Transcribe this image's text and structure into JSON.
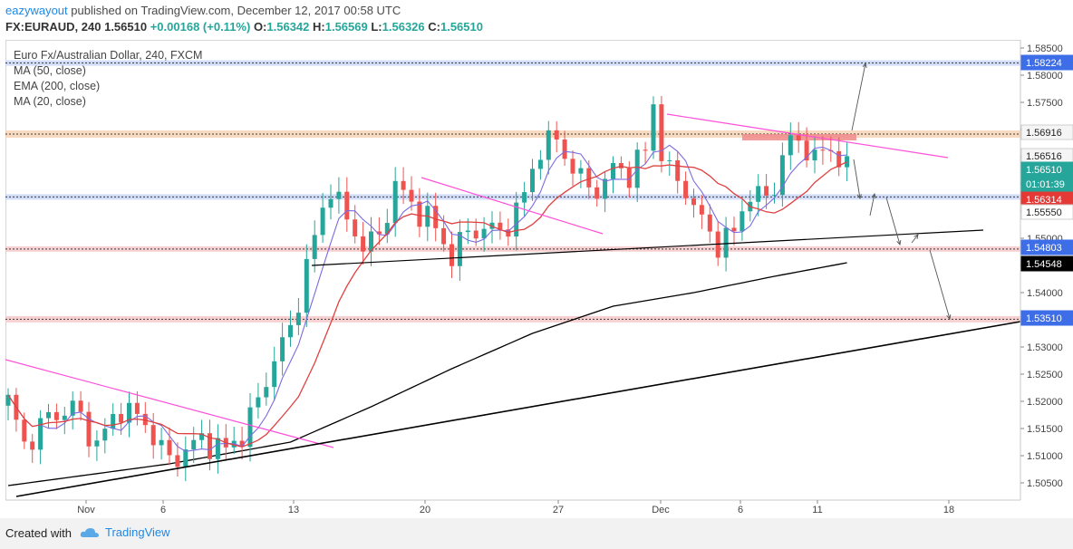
{
  "header": {
    "author": "eazywayout",
    "published_text": "published on TradingView.com, December 12, 2017 00:58 UTC"
  },
  "ohlc": {
    "symbol": "FX:EURAUD, 240",
    "last": "1.56510",
    "change": "+0.00168 (+0.11%)",
    "o_label": "O:",
    "o": "1.56342",
    "h_label": "H:",
    "h": "1.56569",
    "l_label": "L:",
    "l": "1.56326",
    "c_label": "C:",
    "c": "1.56510"
  },
  "legend": {
    "title": "Euro Fx/Australian Dollar, 240, FXCM",
    "ma50": "MA (50, close)",
    "ema200": "EMA (200, close)",
    "ma20": "MA (20, close)"
  },
  "footer": {
    "created_with": "Created with",
    "brand": "TradingView"
  },
  "colors": {
    "up": "#26a69a",
    "down": "#ef5350",
    "ma50": "#e04040",
    "ema200": "#000000",
    "ma20": "#7b6be0",
    "trend_magenta": "#ff4fd8",
    "blue_zone": "#3d6ee8",
    "orange_zone": "#f0a060",
    "pink_zone": "#f08080",
    "price_box": "#000000"
  },
  "chart_data": {
    "type": "candlestick",
    "symbol": "EURAUD",
    "timeframe": "240",
    "y_ticks": [
      "1.58500",
      "1.58000",
      "1.57500",
      "1.57000",
      "1.56500",
      "1.56000",
      "1.55500",
      "1.55000",
      "1.54500",
      "1.54000",
      "1.53500",
      "1.53000",
      "1.52500",
      "1.52000",
      "1.51500",
      "1.51000",
      "1.50500"
    ],
    "x_ticks": [
      "Nov",
      "6",
      "13",
      "20",
      "27",
      "Dec",
      "6",
      "11",
      "18"
    ],
    "price_labels": [
      {
        "value": "1.58224",
        "color": "#3d6ee8"
      },
      {
        "value": "1.56916",
        "color": "#f5f5f5"
      },
      {
        "value": "1.56516",
        "color": "#f5f5f5"
      },
      {
        "value": "1.56510",
        "color": "#26a69a"
      },
      {
        "value": "01:01:39",
        "color": "#26a69a"
      },
      {
        "value": "1.56314",
        "color": "#e53935"
      },
      {
        "value": "1.55550",
        "color": "#ffffff"
      },
      {
        "value": "1.54803",
        "color": "#3d6ee8"
      },
      {
        "value": "1.54548",
        "color": "#000000"
      },
      {
        "value": "1.53510",
        "color": "#3d6ee8"
      }
    ],
    "horizontal_levels": [
      1.58224,
      1.56916,
      1.5576,
      1.54803,
      1.5351
    ],
    "ylim": [
      1.502,
      1.587
    ],
    "close_anchors": [
      [
        0,
        1.52
      ],
      [
        2,
        1.512
      ],
      [
        5,
        1.517
      ],
      [
        8,
        1.519
      ],
      [
        11,
        1.512
      ],
      [
        14,
        1.519
      ],
      [
        17,
        1.516
      ],
      [
        20,
        1.509
      ],
      [
        24,
        1.513
      ],
      [
        27,
        1.511
      ],
      [
        29,
        1.514
      ],
      [
        31,
        1.52
      ],
      [
        33,
        1.528
      ],
      [
        35,
        1.533
      ],
      [
        37,
        1.545
      ],
      [
        39,
        1.555
      ],
      [
        40,
        1.56
      ],
      [
        42,
        1.553
      ],
      [
        44,
        1.549
      ],
      [
        46,
        1.55
      ],
      [
        48,
        1.56
      ],
      [
        50,
        1.556
      ],
      [
        52,
        1.554
      ],
      [
        54,
        1.549
      ],
      [
        55,
        1.547
      ],
      [
        57,
        1.551
      ],
      [
        59,
        1.552
      ],
      [
        61,
        1.551
      ],
      [
        63,
        1.555
      ],
      [
        64,
        1.558
      ],
      [
        66,
        1.567
      ],
      [
        68,
        1.568
      ],
      [
        70,
        1.563
      ],
      [
        72,
        1.559
      ],
      [
        74,
        1.56
      ],
      [
        75,
        1.563
      ],
      [
        77,
        1.562
      ],
      [
        79,
        1.566
      ],
      [
        80,
        1.575
      ],
      [
        81,
        1.566
      ],
      [
        82,
        1.562
      ],
      [
        84,
        1.559
      ],
      [
        86,
        1.553
      ],
      [
        88,
        1.549
      ],
      [
        90,
        1.551
      ],
      [
        92,
        1.559
      ],
      [
        93,
        1.557
      ],
      [
        95,
        1.559
      ],
      [
        96,
        1.566
      ],
      [
        98,
        1.568
      ],
      [
        100,
        1.565
      ],
      [
        102,
        1.566
      ],
      [
        104,
        1.5651
      ]
    ]
  }
}
